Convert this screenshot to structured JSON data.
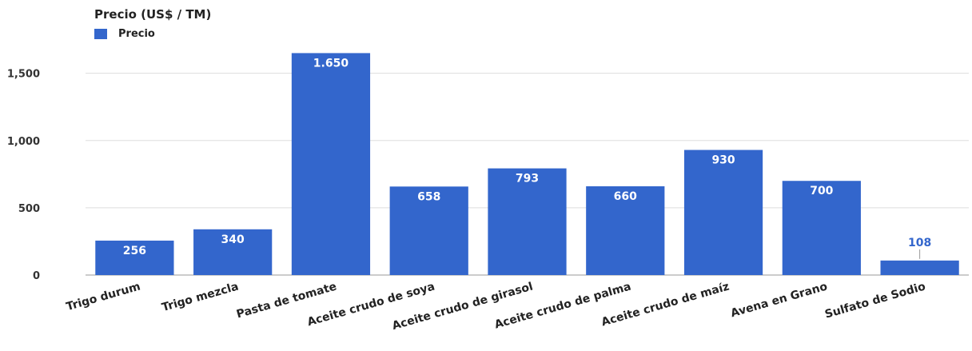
{
  "chart_data": {
    "type": "bar",
    "title": "Precio (US$ / TM)",
    "legend": {
      "entries": [
        "Precio"
      ],
      "placement": "top-left"
    },
    "categories": [
      "Trigo durum",
      "Trigo mezcla",
      "Pasta de tomate",
      "Aceite crudo de soya",
      "Aceite crudo de girasol",
      "Aceite crudo de palma",
      "Aceite crudo de maíz",
      "Avena en Grano",
      "Sulfato de Sodio"
    ],
    "series": [
      {
        "name": "Precio",
        "values": [
          256,
          340,
          1650,
          658,
          793,
          660,
          930,
          700,
          108
        ]
      }
    ],
    "data_labels": [
      "256",
      "340",
      "1.650",
      "658",
      "793",
      "660",
      "930",
      "700",
      "108"
    ],
    "y_ticks": [
      0,
      500,
      1000,
      1500
    ],
    "y_tick_labels": [
      "0",
      "500",
      "1,000",
      "1,500"
    ],
    "ylim": [
      0,
      1700
    ],
    "grid": true,
    "bar_color": "#3366cc",
    "label_color_inside": "#ffffff",
    "label_color_outside": "#3366cc",
    "gridline_color": "#dddddd"
  }
}
